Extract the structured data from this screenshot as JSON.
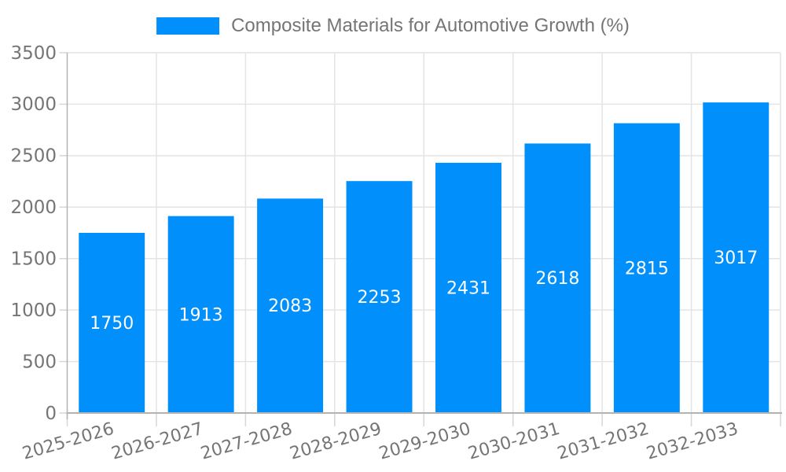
{
  "chart_data": {
    "type": "bar",
    "title": "Composite Materials for Automotive Growth (%)",
    "categories": [
      "2025-2026",
      "2026-2027",
      "2027-2028",
      "2028-2029",
      "2029-2030",
      "2030-2031",
      "2031-2032",
      "2032-2033"
    ],
    "values": [
      1750,
      1913,
      2083,
      2253,
      2431,
      2618,
      2815,
      3017
    ],
    "value_labels": [
      "1750",
      "1913",
      "2083",
      "2253",
      "2431",
      "2618",
      "2815",
      "3017"
    ],
    "xlabel": "",
    "ylabel": "",
    "ylim": [
      0,
      3500
    ],
    "yticks": [
      0,
      500,
      1000,
      1500,
      2000,
      2500,
      3000,
      3500
    ],
    "grid": true,
    "legend_position": "top-center",
    "colors": {
      "bar": "#008FFB",
      "bar_label": "#FFFFFF",
      "axis_text": "#757575",
      "grid_line": "#E4E4E4",
      "axis_line": "#B3B3B3",
      "tick_mark": "#D6D6D6",
      "background": "#FFFFFF"
    }
  }
}
